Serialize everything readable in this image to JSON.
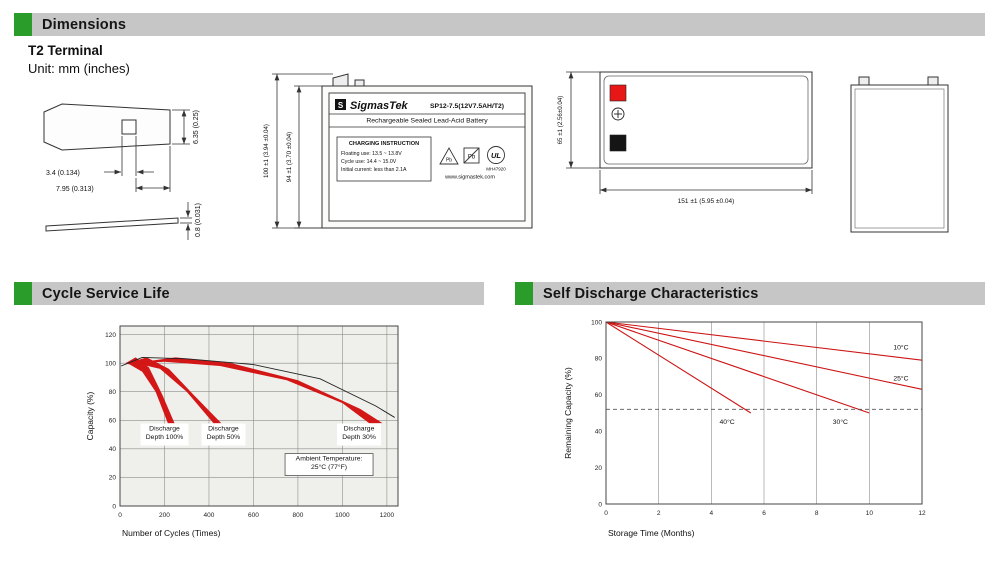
{
  "colors": {
    "accent_green": "#2a9c2a",
    "band_red": "#d31616",
    "line_red": "#cc1414",
    "terminal_red": "#e81717",
    "terminal_black": "#151515"
  },
  "sections": {
    "dimensions": {
      "title": "Dimensions"
    },
    "cycle": {
      "title": "Cycle Service Life"
    },
    "self_discharge": {
      "title": "Self Discharge Characteristics"
    }
  },
  "dimensions": {
    "terminal_type": "T2 Terminal",
    "unit_note": "Unit: mm (inches)",
    "terminal_view": {
      "hole_width": "3.4 (0.134)",
      "hole_offset": "7.95 (0.313)",
      "tab_height": "6.35 (0.25)",
      "thickness": "0.8 (0.031)"
    },
    "front_view": {
      "total_height": "100 ±1 (3.94 ±0.04)",
      "container_height": "94 ±1 (3.70 ±0.04)"
    },
    "top_view": {
      "width_dim": "65 ±1 (2.56±0.04)",
      "length_dim": "151 ±1 (5.95 ±0.04)"
    },
    "label": {
      "logo_letter": "S",
      "brand": "SigmasTek",
      "model": "SP12-7.5(12V7.5AH/T2)",
      "type_line": "Rechargeable Sealed Lead-Acid Battery",
      "charging_title": "CHARGING INSTRUCTION",
      "charging_line1": "Floating use: 13.5 ~ 13.8V",
      "charging_line2": "Cycle use: 14.4 ~ 15.0V",
      "charging_line3": "Initial current: less than 2.1A",
      "pb": "Pb",
      "ul_text": "UL",
      "ul_file": "MH47920",
      "website": "www.sigmastek.com"
    }
  },
  "chart_data": [
    {
      "type": "area",
      "title": "Cycle Service Life",
      "xlabel": "Number of Cycles (Times)",
      "ylabel": "Capacity (%)",
      "xlim": [
        0,
        1250
      ],
      "ylim": [
        0,
        126
      ],
      "xticks": [
        0,
        200,
        400,
        600,
        800,
        1000,
        1200
      ],
      "yticks": [
        0,
        20,
        40,
        60,
        80,
        100,
        120
      ],
      "grid": "both",
      "plot_bg": "#efefeb",
      "margins": {
        "l": 38,
        "r": 14,
        "t": 14,
        "b": 34
      },
      "bands": [
        {
          "name": "discharge-depth-100",
          "color": "#d31616",
          "points": [
            [
              25,
              100
            ],
            [
              70,
              104
            ],
            [
              130,
              97
            ],
            [
              190,
              78
            ],
            [
              245,
              58
            ],
            [
              215,
              58
            ],
            [
              160,
              80
            ],
            [
              100,
              94
            ],
            [
              45,
              99
            ]
          ]
        },
        {
          "name": "discharge-depth-50",
          "color": "#d31616",
          "points": [
            [
              35,
              100
            ],
            [
              120,
              104
            ],
            [
              220,
              96
            ],
            [
              330,
              78
            ],
            [
              455,
              58
            ],
            [
              420,
              58
            ],
            [
              300,
              80
            ],
            [
              180,
              96
            ],
            [
              70,
              100
            ]
          ]
        },
        {
          "name": "discharge-depth-30",
          "color": "#d31616",
          "points": [
            [
              60,
              100
            ],
            [
              250,
              104
            ],
            [
              500,
              100
            ],
            [
              800,
              88
            ],
            [
              1080,
              68
            ],
            [
              1180,
              58
            ],
            [
              1120,
              58
            ],
            [
              1000,
              72
            ],
            [
              750,
              88
            ],
            [
              450,
              98
            ],
            [
              200,
              101
            ],
            [
              100,
              100
            ]
          ]
        }
      ],
      "series": [
        {
          "name": "capacity-envelope",
          "color": "#222222",
          "width": 0.9,
          "points": [
            [
              5,
              98
            ],
            [
              100,
              104
            ],
            [
              300,
              103
            ],
            [
              600,
              99
            ],
            [
              900,
              89
            ],
            [
              1150,
              70
            ],
            [
              1235,
              62
            ]
          ]
        }
      ],
      "labels": [
        {
          "lines": [
            "Discharge",
            "Depth 100%"
          ],
          "x": 200,
          "y": 50,
          "box": true,
          "stroke": false
        },
        {
          "lines": [
            "Discharge",
            "Depth 50%"
          ],
          "x": 465,
          "y": 50,
          "box": true,
          "stroke": false
        },
        {
          "lines": [
            "Discharge",
            "Depth 30%"
          ],
          "x": 1075,
          "y": 50,
          "box": true,
          "stroke": false
        },
        {
          "lines": [
            "Ambient Temperature:",
            "25°C (77°F)"
          ],
          "x": 940,
          "y": 29,
          "box": true,
          "stroke": true
        }
      ]
    },
    {
      "type": "line",
      "title": "Self Discharge Characteristics",
      "xlabel": "Storage Time (Months)",
      "ylabel": "Remaining Capacity (%)",
      "xlim": [
        0,
        12
      ],
      "ylim": [
        0,
        100
      ],
      "xticks": [
        0,
        2,
        4,
        6,
        8,
        10,
        12
      ],
      "yticks": [
        0,
        20,
        40,
        60,
        80,
        100
      ],
      "grid": "x",
      "plot_bg": "#ffffff",
      "margins": {
        "l": 46,
        "r": 16,
        "t": 10,
        "b": 36
      },
      "series": [
        {
          "name": "10C",
          "color": "#cc1414",
          "width": 1.1,
          "points": [
            [
              0,
              100
            ],
            [
              12,
              79
            ]
          ]
        },
        {
          "name": "25C",
          "color": "#cc1414",
          "width": 1.1,
          "points": [
            [
              0,
              100
            ],
            [
              12,
              63
            ]
          ]
        },
        {
          "name": "30C",
          "color": "#cc1414",
          "width": 1.1,
          "points": [
            [
              0,
              100
            ],
            [
              10,
              50
            ]
          ]
        },
        {
          "name": "40C",
          "color": "#cc1414",
          "width": 1.1,
          "points": [
            [
              0,
              100
            ],
            [
              5.5,
              50
            ]
          ]
        },
        {
          "name": "50-percent-threshold",
          "color": "#555555",
          "width": 0.9,
          "dash": "4 3",
          "points": [
            [
              0,
              52
            ],
            [
              12,
              52
            ]
          ]
        }
      ],
      "labels": [
        {
          "lines": [
            "10°C"
          ],
          "x": 11.2,
          "y": 85,
          "box": false
        },
        {
          "lines": [
            "25°C"
          ],
          "x": 11.2,
          "y": 68,
          "box": false
        },
        {
          "lines": [
            "40°C"
          ],
          "x": 4.6,
          "y": 44,
          "box": false
        },
        {
          "lines": [
            "30°C"
          ],
          "x": 8.9,
          "y": 44,
          "box": false
        }
      ]
    }
  ]
}
